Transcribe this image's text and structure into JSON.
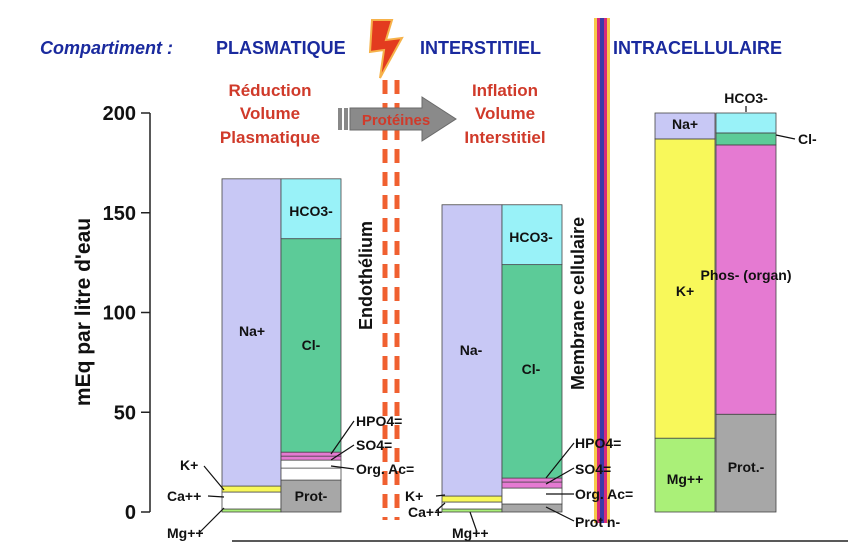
{
  "header": {
    "prefix": "Compartiment  :",
    "plasma": "PLASMATIQUE",
    "interstitial": "INTERSTITIEL",
    "intracellular": "INTRACELLULAIRE"
  },
  "annotations": {
    "reduction": [
      "Réduction",
      "Volume",
      "Plasmatique"
    ],
    "inflation": [
      "Inflation",
      "Volume",
      "Interstitiel"
    ],
    "proteins": "Protéines",
    "endothelium": "Endothélium",
    "membrane": "Membrane cellulaire"
  },
  "colors": {
    "na": "#c8c8f5",
    "hco3": "#99f2f8",
    "cl": "#5ccb98",
    "k": "#f8f85a",
    "mg": "#aaf078",
    "prot": "#a7a7a7",
    "phos": "#e57ad2",
    "title": "#1a2a9e",
    "red": "#d03a2a",
    "dash": "#f06030"
  },
  "chart_data": {
    "type": "stacked-bar",
    "ylabel": "mEq par litre d'eau",
    "ylim": [
      0,
      200
    ],
    "yticks": [
      0,
      50,
      100,
      150,
      200
    ],
    "columns": [
      {
        "name": "plasma-cations",
        "segments": [
          {
            "label": "Mg++",
            "from": 0,
            "to": 1.5,
            "color": "mg"
          },
          {
            "label": "Ca++",
            "from": 1.5,
            "to": 10,
            "color": "white"
          },
          {
            "label": "K+",
            "from": 10,
            "to": 13,
            "color": "k"
          },
          {
            "label": "Na+",
            "from": 13,
            "to": 167,
            "color": "na"
          }
        ]
      },
      {
        "name": "plasma-anions",
        "segments": [
          {
            "label": "Prot-",
            "from": 0,
            "to": 16,
            "color": "prot"
          },
          {
            "label": "",
            "from": 16,
            "to": 22,
            "color": "white"
          },
          {
            "label": "Org. Ac=",
            "from": 22,
            "to": 26,
            "color": "white"
          },
          {
            "label": "SO4=",
            "from": 26,
            "to": 28,
            "color": "phos"
          },
          {
            "label": "HPO4=",
            "from": 28,
            "to": 30,
            "color": "phos"
          },
          {
            "label": "Cl-",
            "from": 30,
            "to": 137,
            "color": "cl"
          },
          {
            "label": "HCO3-",
            "from": 137,
            "to": 167,
            "color": "hco3"
          }
        ]
      },
      {
        "name": "interstitial-cations",
        "segments": [
          {
            "label": "Mg++",
            "from": 0,
            "to": 1.5,
            "color": "mg"
          },
          {
            "label": "Ca++",
            "from": 1.5,
            "to": 5,
            "color": "white"
          },
          {
            "label": "K+",
            "from": 5,
            "to": 8,
            "color": "k"
          },
          {
            "label": "Na-",
            "from": 8,
            "to": 154,
            "color": "na"
          }
        ]
      },
      {
        "name": "interstitial-anions",
        "segments": [
          {
            "label": "Prot n-",
            "from": 0,
            "to": 4,
            "color": "prot"
          },
          {
            "label": "Org. Ac=",
            "from": 4,
            "to": 12,
            "color": "white"
          },
          {
            "label": "SO4=",
            "from": 12,
            "to": 15,
            "color": "phos"
          },
          {
            "label": "HPO4=",
            "from": 15,
            "to": 17,
            "color": "phos"
          },
          {
            "label": "Cl-",
            "from": 17,
            "to": 124,
            "color": "cl"
          },
          {
            "label": "HCO3-",
            "from": 124,
            "to": 154,
            "color": "hco3"
          }
        ]
      },
      {
        "name": "intracellular-cations",
        "segments": [
          {
            "label": "Mg++",
            "from": 0,
            "to": 37,
            "color": "mg"
          },
          {
            "label": "K+",
            "from": 37,
            "to": 187,
            "color": "k"
          },
          {
            "label": "Na+",
            "from": 187,
            "to": 200,
            "color": "na"
          }
        ]
      },
      {
        "name": "intracellular-anions",
        "segments": [
          {
            "label": "Prot.-",
            "from": 0,
            "to": 49,
            "color": "prot"
          },
          {
            "label": "Phos- (organ)",
            "from": 49,
            "to": 184,
            "color": "phos"
          },
          {
            "label": "Cl-",
            "from": 184,
            "to": 190,
            "color": "cl"
          },
          {
            "label": "HCO3-",
            "from": 190,
            "to": 200,
            "color": "hco3"
          }
        ]
      }
    ]
  }
}
